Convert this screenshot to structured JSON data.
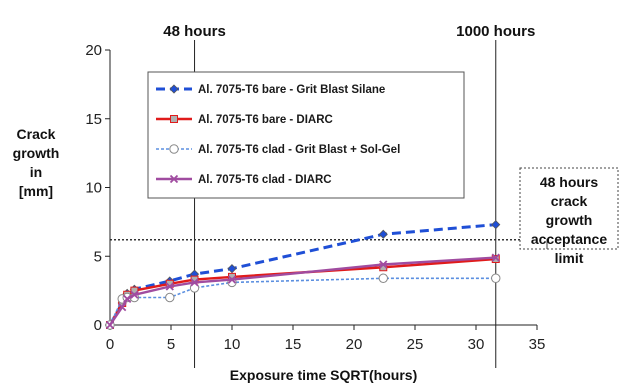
{
  "chart_data": {
    "type": "line",
    "xlabel": "Exposure time SQRT(hours)",
    "ylabel_lines": [
      "Crack",
      "growth",
      "in",
      "[mm]"
    ],
    "xlim": [
      0,
      35
    ],
    "ylim": [
      0,
      20
    ],
    "xticks": [
      0,
      5,
      10,
      15,
      20,
      25,
      30,
      35
    ],
    "yticks": [
      0,
      5,
      10,
      15,
      20
    ],
    "grid": false,
    "legend_position": "top-left",
    "vertical_markers": [
      {
        "x": 6.93,
        "label": "48 hours"
      },
      {
        "x": 31.62,
        "label": "1000 hours"
      }
    ],
    "horizontal_limit": {
      "y": 6.2,
      "label_lines": [
        "48 hours",
        "crack",
        "growth",
        "acceptance",
        "limit"
      ]
    },
    "series": [
      {
        "name": "Al. 7075-T6 bare - Grit Blast Silane",
        "color": "#1f4fd6",
        "dash": "dashed",
        "marker": "diamond",
        "x": [
          0,
          1,
          1.41,
          2,
          4.9,
          6.93,
          10,
          22.4,
          31.62
        ],
        "y": [
          0,
          1.6,
          2.3,
          2.6,
          3.2,
          3.7,
          4.1,
          6.6,
          7.3
        ]
      },
      {
        "name": "Al. 7075-T6 bare - DIARC",
        "color": "#e01b1b",
        "dash": "solid",
        "marker": "square",
        "x": [
          0,
          1,
          1.41,
          2,
          4.9,
          6.93,
          10,
          22.4,
          31.62
        ],
        "y": [
          0,
          1.6,
          2.2,
          2.5,
          3.0,
          3.3,
          3.5,
          4.2,
          4.8
        ]
      },
      {
        "name": "Al. 7075-T6 clad - Grit Blast + Sol-Gel",
        "color": "#5b8fe0",
        "dash": "dotted",
        "marker": "circle",
        "x": [
          0,
          1,
          1.41,
          2,
          4.9,
          6.93,
          10,
          22.4,
          31.62
        ],
        "y": [
          0,
          1.9,
          2.0,
          2.0,
          2.0,
          2.7,
          3.1,
          3.4,
          3.4
        ]
      },
      {
        "name": "Al. 7075-T6 clad - DIARC",
        "color": "#a04ca0",
        "dash": "solid",
        "marker": "x",
        "x": [
          0,
          1,
          1.41,
          2,
          4.9,
          6.93,
          10,
          22.4,
          31.62
        ],
        "y": [
          0,
          1.3,
          1.9,
          2.2,
          2.8,
          3.1,
          3.3,
          4.4,
          4.9
        ]
      }
    ]
  }
}
